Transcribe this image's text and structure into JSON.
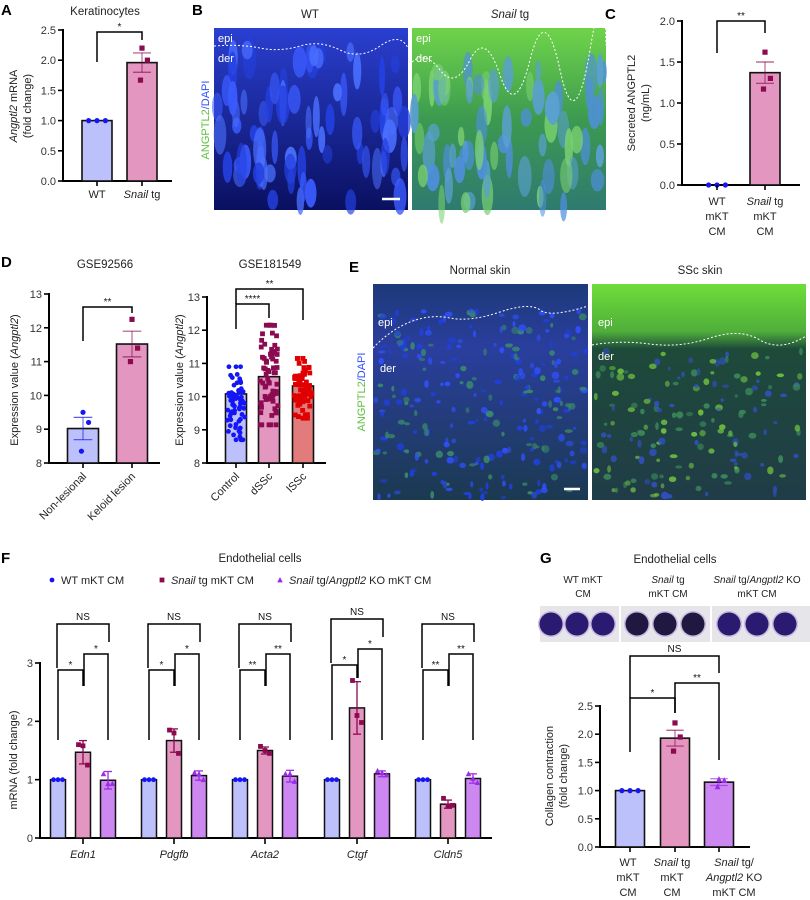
{
  "panel_letters": {
    "A": "A",
    "B": "B",
    "C": "C",
    "D": "D",
    "E": "E",
    "F": "F",
    "G": "G"
  },
  "colors": {
    "wt_bar": "#bcc0fb",
    "snail_bar": "#e396c0",
    "ko_bar": "#cc88f0",
    "lssc_bar": "#e27c7c",
    "wt_point": "#1515f5",
    "snail_point": "#8b0a50",
    "ko_point": "#9a2ee6",
    "lssc_point": "#e00000",
    "angptl2_stain": "#5fd23c",
    "dapi_stain": "#2f4dff"
  },
  "panel_b": {
    "wt_title": "WT",
    "snail_title_italic": "Snail",
    "snail_title_rest": " tg",
    "stain_green": "ANGPTL2",
    "stain_blue": "/DAPI",
    "epi": "epi",
    "der": "der"
  },
  "panel_e": {
    "normal_title": "Normal skin",
    "ssc_title": "SSc skin",
    "stain_green": "ANGPTL2",
    "stain_blue": "/DAPI",
    "epi": "epi",
    "der": "der"
  },
  "panel_g_plate": {
    "headings": [
      {
        "l1": [
          {
            "t": "WT mKT"
          }
        ],
        "l2": "CM"
      },
      {
        "l1": [
          {
            "t": "Snail",
            "i": true
          },
          {
            "t": " tg"
          }
        ],
        "l2": "mKT CM"
      },
      {
        "l1": [
          {
            "t": "Snail",
            "i": true
          },
          {
            "t": " tg/"
          },
          {
            "t": "Angptl2",
            "i": true
          },
          {
            "t": " KO"
          }
        ],
        "l2": "mKT CM"
      }
    ]
  },
  "chart_data": [
    {
      "id": "A",
      "type": "bar",
      "title": "Keratinocytes",
      "ylabel": [
        [
          {
            "t": "Angptl2",
            "i": true
          },
          {
            "t": " mRNA"
          }
        ],
        [
          {
            "t": "(fold change)"
          }
        ]
      ],
      "ylim": [
        0,
        2.5
      ],
      "yticks": [
        "0.0",
        "0.5",
        "1.0",
        "1.5",
        "2.0",
        "2.5"
      ],
      "categories": [
        [
          [
            {
              "t": "WT"
            }
          ]
        ],
        [
          [
            {
              "t": "Snail",
              "i": true
            },
            {
              "t": " tg"
            }
          ]
        ]
      ],
      "bars": [
        {
          "mean": 1.0,
          "err": 0,
          "points": [
            1,
            1,
            1
          ],
          "fill": "wt_bar",
          "marker": "circle",
          "mcolor": "wt_point"
        },
        {
          "mean": 1.96,
          "err": 0.16,
          "points": [
            2.2,
            2.0,
            1.67
          ],
          "fill": "snail_bar",
          "marker": "square",
          "mcolor": "snail_point"
        }
      ],
      "significance": [
        {
          "pair": [
            0,
            1
          ],
          "label": "*"
        }
      ]
    },
    {
      "id": "C",
      "type": "bar",
      "title": "",
      "ylabel": [
        [
          {
            "t": "Secreted ANGPTL2"
          }
        ],
        [
          {
            "t": "(ng/mL)"
          }
        ]
      ],
      "ylim": [
        0,
        2.0
      ],
      "yticks": [
        "0.0",
        "0.5",
        "1.0",
        "1.5",
        "2.0"
      ],
      "categories": [
        [
          [
            {
              "t": "WT"
            }
          ],
          [
            {
              "t": "mKT"
            }
          ],
          [
            {
              "t": "CM"
            }
          ]
        ],
        [
          [
            {
              "t": "Snail",
              "i": true
            },
            {
              "t": " tg"
            }
          ],
          [
            {
              "t": "mKT"
            }
          ],
          [
            {
              "t": "CM"
            }
          ]
        ]
      ],
      "bars": [
        {
          "mean": 0.0,
          "err": 0,
          "points": [
            0,
            0,
            0
          ],
          "fill": "wt_bar",
          "marker": "circle",
          "mcolor": "wt_point"
        },
        {
          "mean": 1.37,
          "err": 0.13,
          "points": [
            1.62,
            1.3,
            1.17
          ],
          "fill": "snail_bar",
          "marker": "square",
          "mcolor": "snail_point"
        }
      ],
      "significance": [
        {
          "pair": [
            0,
            1
          ],
          "label": "**"
        }
      ]
    },
    {
      "id": "D1",
      "type": "bar",
      "title": "GSE92566",
      "ylabel": [
        [
          {
            "t": "Expression value ("
          },
          {
            "t": "Angptl2",
            "i": true
          },
          {
            "t": ")"
          }
        ]
      ],
      "ylim": [
        8,
        13
      ],
      "yticks": [
        "8",
        "9",
        "10",
        "11",
        "12",
        "13"
      ],
      "categories": [
        [
          [
            {
              "t": "Non-lesional"
            }
          ]
        ],
        [
          [
            {
              "t": "Keloid lesion"
            }
          ]
        ]
      ],
      "bars": [
        {
          "mean": 9.02,
          "err": 0.33,
          "points": [
            9.5,
            9.2,
            8.35
          ],
          "fill": "wt_bar",
          "marker": "circle",
          "mcolor": "wt_point"
        },
        {
          "mean": 11.52,
          "err": 0.38,
          "points": [
            12.25,
            11.4,
            11.0
          ],
          "fill": "snail_bar",
          "marker": "square",
          "mcolor": "snail_point"
        }
      ],
      "significance": [
        {
          "pair": [
            0,
            1
          ],
          "label": "**"
        }
      ]
    },
    {
      "id": "D2",
      "type": "bar",
      "title": "GSE181549",
      "ylabel": [
        [
          {
            "t": "Expression value ("
          },
          {
            "t": "Angptl2",
            "i": true
          },
          {
            "t": ")"
          }
        ]
      ],
      "ylim": [
        8,
        13
      ],
      "yticks": [
        "8",
        "9",
        "10",
        "11",
        "12",
        "13"
      ],
      "categories": [
        [
          [
            {
              "t": "Control"
            }
          ]
        ],
        [
          [
            {
              "t": "dSSc"
            }
          ]
        ],
        [
          [
            {
              "t": "lSSc"
            }
          ]
        ]
      ],
      "bars": [
        {
          "mean": 10.08,
          "err": 0,
          "range": [
            8.7,
            10.9
          ],
          "fill": "wt_bar",
          "marker": "circle",
          "mcolor": "wt_point"
        },
        {
          "mean": 10.6,
          "err": 0,
          "range": [
            9.15,
            12.15
          ],
          "fill": "snail_bar",
          "marker": "square",
          "mcolor": "snail_point"
        },
        {
          "mean": 10.32,
          "err": 0,
          "range": [
            9.35,
            11.15
          ],
          "fill": "lssc_bar",
          "marker": "square",
          "mcolor": "lssc_point"
        }
      ],
      "significance": [
        {
          "pair": [
            0,
            1
          ],
          "label": "****"
        },
        {
          "pair": [
            0,
            2
          ],
          "label": "**"
        }
      ]
    },
    {
      "id": "F",
      "type": "grouped-bar",
      "title": "Endothelial cells",
      "legend": [
        {
          "marker": "circle",
          "color": "wt_point",
          "label": [
            {
              "t": "WT mKT CM"
            }
          ]
        },
        {
          "marker": "square",
          "color": "snail_point",
          "label": [
            {
              "t": "Snail",
              "i": true
            },
            {
              "t": " tg mKT CM"
            }
          ]
        },
        {
          "marker": "triangle",
          "color": "ko_point",
          "label": [
            {
              "t": "Snail",
              "i": true
            },
            {
              "t": " tg/"
            },
            {
              "t": "Angptl2",
              "i": true
            },
            {
              "t": " KO mKT CM"
            }
          ]
        }
      ],
      "ylabel": [
        [
          {
            "t": "mRNA (fold change)"
          }
        ]
      ],
      "ylim": [
        0,
        3
      ],
      "yticks": [
        "0",
        "1",
        "2",
        "3"
      ],
      "groups": [
        {
          "name": "Edn1",
          "bars": [
            {
              "mean": 1,
              "err": 0,
              "points": [
                1,
                1,
                1
              ]
            },
            {
              "mean": 1.47,
              "err": 0.2,
              "points": [
                1.6,
                1.58,
                1.25
              ]
            },
            {
              "mean": 0.99,
              "err": 0.15,
              "points": [
                1.1,
                0.93,
                0.93
              ]
            }
          ],
          "sig": [
            "*",
            "*",
            "NS"
          ]
        },
        {
          "name": "Pdgfb",
          "bars": [
            {
              "mean": 1,
              "err": 0,
              "points": [
                1,
                1,
                1
              ]
            },
            {
              "mean": 1.67,
              "err": 0.2,
              "points": [
                1.85,
                1.8,
                1.45
              ]
            },
            {
              "mean": 1.07,
              "err": 0.08,
              "points": [
                1.12,
                1.1,
                1.0
              ]
            }
          ],
          "sig": [
            "*",
            "*",
            "NS"
          ]
        },
        {
          "name": "Acta2",
          "bars": [
            {
              "mean": 1,
              "err": 0,
              "points": [
                1,
                1,
                1
              ]
            },
            {
              "mean": 1.5,
              "err": 0.06,
              "points": [
                1.57,
                1.5,
                1.45
              ]
            },
            {
              "mean": 1.06,
              "err": 0.1,
              "points": [
                1.1,
                1.1,
                0.97
              ]
            }
          ],
          "sig": [
            "**",
            "**",
            "NS"
          ]
        },
        {
          "name": "Ctgf",
          "bars": [
            {
              "mean": 1,
              "err": 0,
              "points": [
                1,
                1,
                1
              ]
            },
            {
              "mean": 2.23,
              "err": 0.45,
              "points": [
                2.7,
                2.1,
                1.98
              ]
            },
            {
              "mean": 1.1,
              "err": 0.05,
              "points": [
                1.15,
                1.12,
                1.08
              ]
            }
          ],
          "sig": [
            "*",
            "*",
            "NS"
          ]
        },
        {
          "name": "Cldn5",
          "bars": [
            {
              "mean": 1,
              "err": 0,
              "points": [
                1,
                1,
                1
              ]
            },
            {
              "mean": 0.58,
              "err": 0.07,
              "points": [
                0.68,
                0.55,
                0.56
              ]
            },
            {
              "mean": 1.02,
              "err": 0.08,
              "points": [
                1.1,
                1.02,
                0.95
              ]
            }
          ],
          "sig": [
            "**",
            "**",
            "NS"
          ]
        }
      ]
    },
    {
      "id": "G",
      "type": "bar",
      "title": "Endothelial cells",
      "ylabel": [
        [
          {
            "t": "Collagen contraction"
          }
        ],
        [
          {
            "t": "(fold change)"
          }
        ]
      ],
      "ylim": [
        0,
        2.5
      ],
      "yticks": [
        "0.0",
        "0.5",
        "1.0",
        "1.5",
        "2.0",
        "2.5"
      ],
      "categories": [
        [
          [
            {
              "t": "WT"
            }
          ],
          [
            {
              "t": "mKT"
            }
          ],
          [
            {
              "t": "CM"
            }
          ]
        ],
        [
          [
            {
              "t": "Snail",
              "i": true
            },
            {
              "t": " tg"
            }
          ],
          [
            {
              "t": "mKT"
            }
          ],
          [
            {
              "t": "CM"
            }
          ]
        ],
        [
          [
            {
              "t": "Snail",
              "i": true
            },
            {
              "t": " tg/"
            }
          ],
          [
            {
              "t": "Angptl2",
              "i": true
            },
            {
              "t": " KO"
            }
          ],
          [
            {
              "t": "mKT CM"
            }
          ]
        ]
      ],
      "bars": [
        {
          "mean": 1.0,
          "err": 0,
          "points": [
            1,
            1,
            1
          ],
          "fill": "wt_bar",
          "marker": "circle",
          "mcolor": "wt_point"
        },
        {
          "mean": 1.93,
          "err": 0.14,
          "points": [
            2.2,
            1.95,
            1.7
          ],
          "fill": "snail_bar",
          "marker": "square",
          "mcolor": "snail_point"
        },
        {
          "mean": 1.15,
          "err": 0.06,
          "points": [
            1.2,
            1.18,
            1.07
          ],
          "fill": "ko_bar",
          "marker": "triangle",
          "mcolor": "ko_point"
        }
      ],
      "significance": [
        {
          "pair": [
            0,
            1
          ],
          "label": "*"
        },
        {
          "pair": [
            1,
            2
          ],
          "label": "**"
        },
        {
          "pair": [
            0,
            2
          ],
          "label": "NS"
        }
      ]
    }
  ]
}
